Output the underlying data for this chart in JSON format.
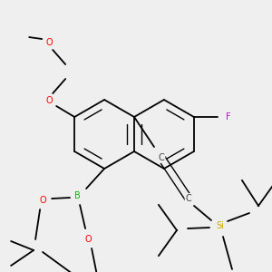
{
  "bg_color": "#efefef",
  "bond_color": "#000000",
  "atom_colors": {
    "O": "#ff0000",
    "B": "#00bb00",
    "F": "#cc00cc",
    "Si": "#ccaa00",
    "C_label": "#444444"
  },
  "lw": 1.3,
  "lw_inner": 1.0,
  "fontsize": 6.5
}
